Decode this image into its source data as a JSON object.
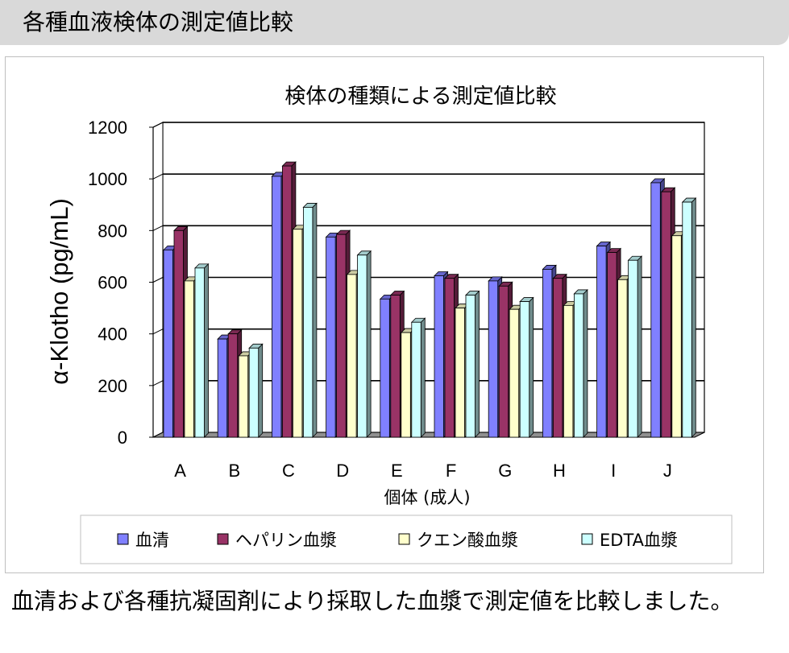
{
  "header": {
    "title": "各種血液検体の測定値比較"
  },
  "caption": "血清および各種抗凝固剤により採取した血漿で測定値を比較しました。",
  "chart_data": {
    "type": "bar",
    "title": "検体の種類による測定値比較",
    "xlabel": "個体 (成人)",
    "ylabel": "α-Klotho (pg/mL)",
    "ylim": [
      0,
      1200
    ],
    "yticks": [
      "0",
      "200",
      "400",
      "600",
      "800",
      "1000",
      "1200"
    ],
    "legend_position": "bottom",
    "categories": [
      "A",
      "B",
      "C",
      "D",
      "E",
      "F",
      "G",
      "H",
      "I",
      "J"
    ],
    "series": [
      {
        "name": "血清",
        "color": "#8080ff",
        "values": [
          725,
          380,
          1010,
          775,
          535,
          625,
          605,
          650,
          740,
          985
        ]
      },
      {
        "name": "ヘパリン血漿",
        "color": "#993366",
        "values": [
          800,
          400,
          1050,
          785,
          550,
          615,
          585,
          615,
          715,
          950
        ]
      },
      {
        "name": "クエン酸血漿",
        "color": "#ffffcc",
        "values": [
          605,
          315,
          805,
          630,
          405,
          500,
          495,
          510,
          610,
          780
        ]
      },
      {
        "name": "EDTA血漿",
        "color": "#ccffff",
        "values": [
          655,
          345,
          890,
          705,
          445,
          550,
          525,
          555,
          685,
          910
        ]
      }
    ]
  }
}
